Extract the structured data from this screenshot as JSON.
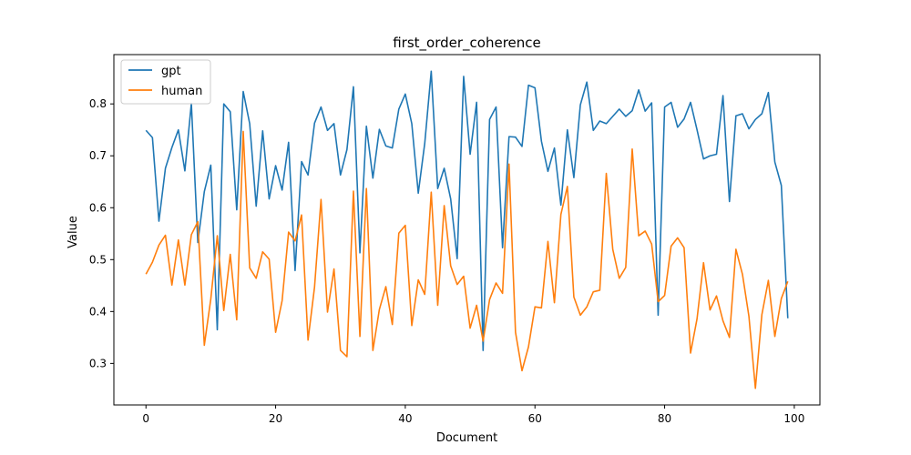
{
  "chart_data": {
    "type": "line",
    "title": "first_order_coherence",
    "xlabel": "Document",
    "ylabel": "Value",
    "xlim": [
      -4.95,
      103.95
    ],
    "ylim": [
      0.22,
      0.895
    ],
    "xticks": [
      0,
      20,
      40,
      60,
      80,
      100
    ],
    "yticks": [
      0.3,
      0.4,
      0.5,
      0.6,
      0.7,
      0.8
    ],
    "grid": false,
    "legend_position": "upper-left",
    "x": [
      0,
      1,
      2,
      3,
      4,
      5,
      6,
      7,
      8,
      9,
      10,
      11,
      12,
      13,
      14,
      15,
      16,
      17,
      18,
      19,
      20,
      21,
      22,
      23,
      24,
      25,
      26,
      27,
      28,
      29,
      30,
      31,
      32,
      33,
      34,
      35,
      36,
      37,
      38,
      39,
      40,
      41,
      42,
      43,
      44,
      45,
      46,
      47,
      48,
      49,
      50,
      51,
      52,
      53,
      54,
      55,
      56,
      57,
      58,
      59,
      60,
      61,
      62,
      63,
      64,
      65,
      66,
      67,
      68,
      69,
      70,
      71,
      72,
      73,
      74,
      75,
      76,
      77,
      78,
      79,
      80,
      81,
      82,
      83,
      84,
      85,
      86,
      87,
      88,
      89,
      90,
      91,
      92,
      93,
      94,
      95,
      96,
      97,
      98,
      99
    ],
    "series": [
      {
        "name": "gpt",
        "color": "#1f77b4",
        "values": [
          0.749,
          0.735,
          0.574,
          0.676,
          0.716,
          0.75,
          0.671,
          0.801,
          0.533,
          0.631,
          0.682,
          0.365,
          0.8,
          0.785,
          0.596,
          0.824,
          0.762,
          0.603,
          0.748,
          0.617,
          0.681,
          0.634,
          0.726,
          0.479,
          0.689,
          0.663,
          0.763,
          0.794,
          0.749,
          0.762,
          0.663,
          0.712,
          0.833,
          0.513,
          0.757,
          0.657,
          0.751,
          0.719,
          0.715,
          0.79,
          0.819,
          0.762,
          0.628,
          0.724,
          0.863,
          0.637,
          0.676,
          0.617,
          0.502,
          0.853,
          0.703,
          0.803,
          0.325,
          0.77,
          0.794,
          0.523,
          0.737,
          0.736,
          0.718,
          0.836,
          0.831,
          0.728,
          0.67,
          0.715,
          0.605,
          0.75,
          0.658,
          0.798,
          0.842,
          0.749,
          0.767,
          0.762,
          0.776,
          0.79,
          0.776,
          0.787,
          0.827,
          0.786,
          0.802,
          0.393,
          0.794,
          0.803,
          0.755,
          0.771,
          0.803,
          0.75,
          0.694,
          0.7,
          0.703,
          0.816,
          0.612,
          0.777,
          0.781,
          0.752,
          0.77,
          0.781,
          0.822,
          0.688,
          0.643,
          0.387
        ]
      },
      {
        "name": "human",
        "color": "#ff7f0e",
        "values": [
          0.472,
          0.495,
          0.528,
          0.547,
          0.451,
          0.538,
          0.451,
          0.548,
          0.573,
          0.335,
          0.424,
          0.546,
          0.402,
          0.51,
          0.384,
          0.747,
          0.484,
          0.464,
          0.515,
          0.501,
          0.36,
          0.421,
          0.553,
          0.536,
          0.586,
          0.345,
          0.447,
          0.616,
          0.399,
          0.482,
          0.325,
          0.313,
          0.632,
          0.352,
          0.637,
          0.325,
          0.404,
          0.448,
          0.375,
          0.551,
          0.566,
          0.373,
          0.461,
          0.433,
          0.63,
          0.412,
          0.604,
          0.488,
          0.452,
          0.468,
          0.368,
          0.412,
          0.343,
          0.423,
          0.455,
          0.435,
          0.684,
          0.36,
          0.286,
          0.332,
          0.409,
          0.407,
          0.535,
          0.417,
          0.587,
          0.641,
          0.428,
          0.393,
          0.409,
          0.438,
          0.441,
          0.666,
          0.52,
          0.464,
          0.485,
          0.713,
          0.546,
          0.555,
          0.53,
          0.419,
          0.431,
          0.526,
          0.542,
          0.523,
          0.32,
          0.386,
          0.494,
          0.403,
          0.43,
          0.382,
          0.35,
          0.52,
          0.472,
          0.391,
          0.252,
          0.394,
          0.46,
          0.352,
          0.425,
          0.458
        ]
      }
    ]
  }
}
